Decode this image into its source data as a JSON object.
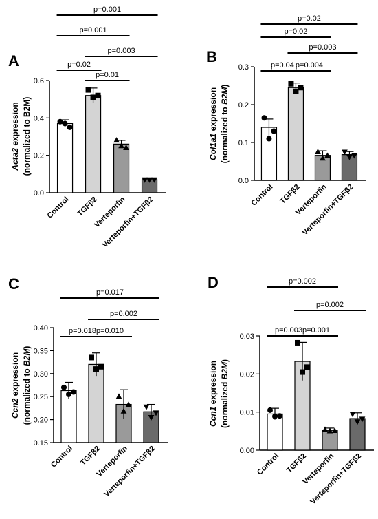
{
  "chart_data": [
    {
      "panel": "A",
      "type": "bar",
      "categories": [
        "Control",
        "TGFβ2",
        "Verteporfin",
        "Verteporfin+TGFβ2"
      ],
      "values": [
        0.37,
        0.52,
        0.26,
        0.07
      ],
      "errors": [
        0.02,
        0.04,
        0.02,
        0.005
      ],
      "points": [
        [
          0.38,
          0.35,
          0.37
        ],
        [
          0.55,
          0.52,
          0.51
        ],
        [
          0.28,
          0.24,
          0.25
        ],
        [
          0.07,
          0.07,
          0.07
        ]
      ],
      "point_marker": [
        "circle",
        "square",
        "triangle",
        "triangle-down"
      ],
      "bar_fill": [
        "#ffffff",
        "#d4d4d4",
        "#9a9a9a",
        "#6a6a6a"
      ],
      "ylabel_parts": [
        "Acta2",
        " expression"
      ],
      "ylabel_line2": "(normalized to B2M)",
      "yticks": [
        "0.0",
        "0.2",
        "0.4",
        "0.6"
      ],
      "ytick_values": [
        0.0,
        0.2,
        0.4,
        0.6
      ],
      "ylim": [
        0,
        0.6
      ],
      "comparisons": [
        {
          "label": "p=0.02",
          "from": 0,
          "to": 1
        },
        {
          "label": "p=0.01",
          "from": 1,
          "to": 2
        },
        {
          "label": "p=0.003",
          "from": 1,
          "to": 3
        },
        {
          "label": "p=0.001",
          "from": 0,
          "to": 2
        },
        {
          "label": "p=0.001",
          "from": 0,
          "to": 3
        }
      ]
    },
    {
      "panel": "B",
      "type": "bar",
      "categories": [
        "Control",
        "TGFβ2",
        "Verteporfin",
        "Verteporfin+TGFβ2"
      ],
      "values": [
        0.14,
        0.245,
        0.066,
        0.068
      ],
      "errors": [
        0.022,
        0.012,
        0.012,
        0.008
      ],
      "points": [
        [
          0.165,
          0.13,
          0.11
        ],
        [
          0.255,
          0.245,
          0.235
        ],
        [
          0.075,
          0.065,
          0.058
        ],
        [
          0.075,
          0.066,
          0.062
        ]
      ],
      "point_marker": [
        "circle",
        "square",
        "triangle",
        "triangle-down"
      ],
      "bar_fill": [
        "#ffffff",
        "#d4d4d4",
        "#9a9a9a",
        "#6a6a6a"
      ],
      "ylabel_parts": [
        "Col1a1",
        " expression"
      ],
      "ylabel_line2_parts": [
        "(normalized to ",
        "B2M",
        ")"
      ],
      "yticks": [
        "0.0",
        "0.1",
        "0.2",
        "0.3"
      ],
      "ytick_values": [
        0.0,
        0.1,
        0.2,
        0.3
      ],
      "ylim": [
        0,
        0.3
      ],
      "comparisons": [
        {
          "label": "p=0.04",
          "from": 0,
          "to": 1
        },
        {
          "label": "p=0.004",
          "from": 1,
          "to": 2
        },
        {
          "label": "p=0.003",
          "from": 1,
          "to": 3
        },
        {
          "label": "p=0.02",
          "from": 0,
          "to": 2
        },
        {
          "label": "p=0.02",
          "from": 0,
          "to": 3
        }
      ]
    },
    {
      "panel": "C",
      "type": "bar",
      "categories": [
        "Control",
        "TGFβ2",
        "Verteporfin",
        "Verteporfin+TGFβ2"
      ],
      "values": [
        0.263,
        0.32,
        0.233,
        0.217
      ],
      "errors": [
        0.018,
        0.025,
        0.032,
        0.016
      ],
      "points": [
        [
          0.27,
          0.26,
          0.255
        ],
        [
          0.335,
          0.315,
          0.31
        ],
        [
          0.25,
          0.232,
          0.218
        ],
        [
          0.228,
          0.215,
          0.205
        ]
      ],
      "point_marker": [
        "circle",
        "square",
        "triangle",
        "triangle-down"
      ],
      "bar_fill": [
        "#ffffff",
        "#d4d4d4",
        "#9a9a9a",
        "#6a6a6a"
      ],
      "ylabel_parts": [
        "Ccn2",
        " expression"
      ],
      "ylabel_line2_parts": [
        "(normalized to ",
        "B2M",
        ")"
      ],
      "yticks": [
        "0.15",
        "0.20",
        "0.25",
        "0.30",
        "0.35",
        "0.40"
      ],
      "ytick_values": [
        0.15,
        0.2,
        0.25,
        0.3,
        0.35,
        0.4
      ],
      "ylim": [
        0.15,
        0.4
      ],
      "comparisons": [
        {
          "label": "p=0.018",
          "from": 0,
          "to": 1
        },
        {
          "label": "p=0.010",
          "from": 1,
          "to": 2
        },
        {
          "label": "p=0.002",
          "from": 1,
          "to": 3
        },
        {
          "label": "p=0.017",
          "from": 0,
          "to": 3
        }
      ]
    },
    {
      "panel": "D",
      "type": "bar",
      "categories": [
        "Control",
        "TGFβ2",
        "Verteporfin",
        "Verteporfin+TGFβ2"
      ],
      "values": [
        0.0095,
        0.0233,
        0.0052,
        0.0083
      ],
      "errors": [
        0.0015,
        0.005,
        0.0006,
        0.0015
      ],
      "points": [
        [
          0.0105,
          0.009,
          0.0089
        ],
        [
          0.0282,
          0.0218,
          0.0205
        ],
        [
          0.0054,
          0.0051,
          0.005
        ],
        [
          0.0095,
          0.0082,
          0.0075
        ]
      ],
      "point_marker": [
        "circle",
        "square",
        "triangle",
        "triangle-down"
      ],
      "bar_fill": [
        "#ffffff",
        "#d4d4d4",
        "#9a9a9a",
        "#6a6a6a"
      ],
      "ylabel_parts": [
        "Ccn1",
        " expression"
      ],
      "ylabel_line2_parts": [
        "(normalized ",
        "B2M",
        ")"
      ],
      "yticks": [
        "0.00",
        "0.01",
        "0.02",
        "0.03"
      ],
      "ytick_values": [
        0.0,
        0.01,
        0.02,
        0.03
      ],
      "ylim": [
        0,
        0.03
      ],
      "comparisons": [
        {
          "label": "p=0.003",
          "from": 0,
          "to": 1
        },
        {
          "label": "p=0.001",
          "from": 1,
          "to": 2
        },
        {
          "label": "p=0.002",
          "from": 1,
          "to": 3
        },
        {
          "label": "p=0.002",
          "from": 0,
          "to": 2
        }
      ]
    }
  ]
}
